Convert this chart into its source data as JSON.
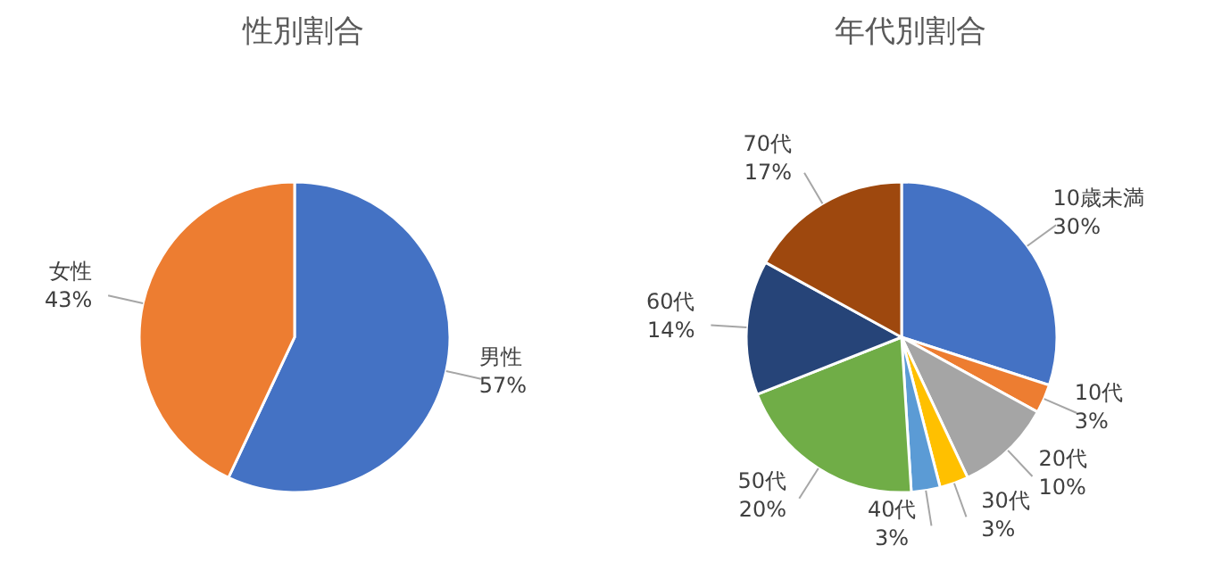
{
  "chart_data": [
    {
      "type": "pie",
      "title": "性別割合",
      "categories": [
        "男性",
        "女性"
      ],
      "values": [
        57,
        43
      ],
      "colors": [
        "#4472c4",
        "#ed7d31"
      ],
      "value_labels": [
        "57%",
        "43%"
      ]
    },
    {
      "type": "pie",
      "title": "年代別割合",
      "categories": [
        "10歳未満",
        "10代",
        "20代",
        "30代",
        "40代",
        "50代",
        "60代",
        "70代"
      ],
      "values": [
        30,
        3,
        10,
        3,
        3,
        20,
        14,
        17
      ],
      "colors": [
        "#4472c4",
        "#ed7d31",
        "#a5a5a5",
        "#ffc000",
        "#5b9bd5",
        "#70ad47",
        "#264478",
        "#9e480e"
      ],
      "value_labels": [
        "30%",
        "3%",
        "10%",
        "3%",
        "3%",
        "20%",
        "14%",
        "17%"
      ]
    }
  ]
}
